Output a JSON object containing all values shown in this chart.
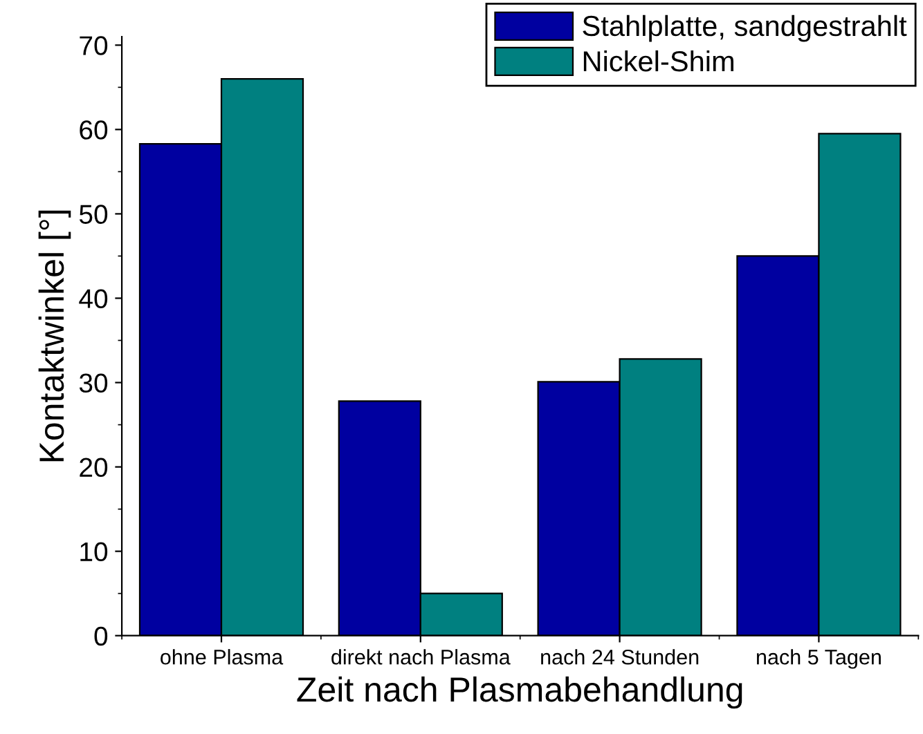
{
  "chart_data": {
    "type": "bar",
    "xlabel": "Zeit nach Plasmabehandlung",
    "ylabel": "Kontaktwinkel [°]",
    "categories": [
      "ohne Plasma",
      "direkt nach Plasma",
      "nach 24 Stunden",
      "nach 5 Tagen"
    ],
    "series": [
      {
        "name": "Stahlplatte, sandgestrahlt",
        "color": "#0000a0",
        "values": [
          58.3,
          27.8,
          30.1,
          45.0
        ]
      },
      {
        "name": "Nickel-Shim",
        "color": "#008080",
        "values": [
          66.0,
          5.0,
          32.8,
          59.5
        ]
      }
    ],
    "ylim": [
      0,
      71
    ],
    "yticks": [
      0,
      10,
      20,
      30,
      40,
      50,
      60,
      70
    ],
    "grid": false,
    "legend": "top right"
  }
}
